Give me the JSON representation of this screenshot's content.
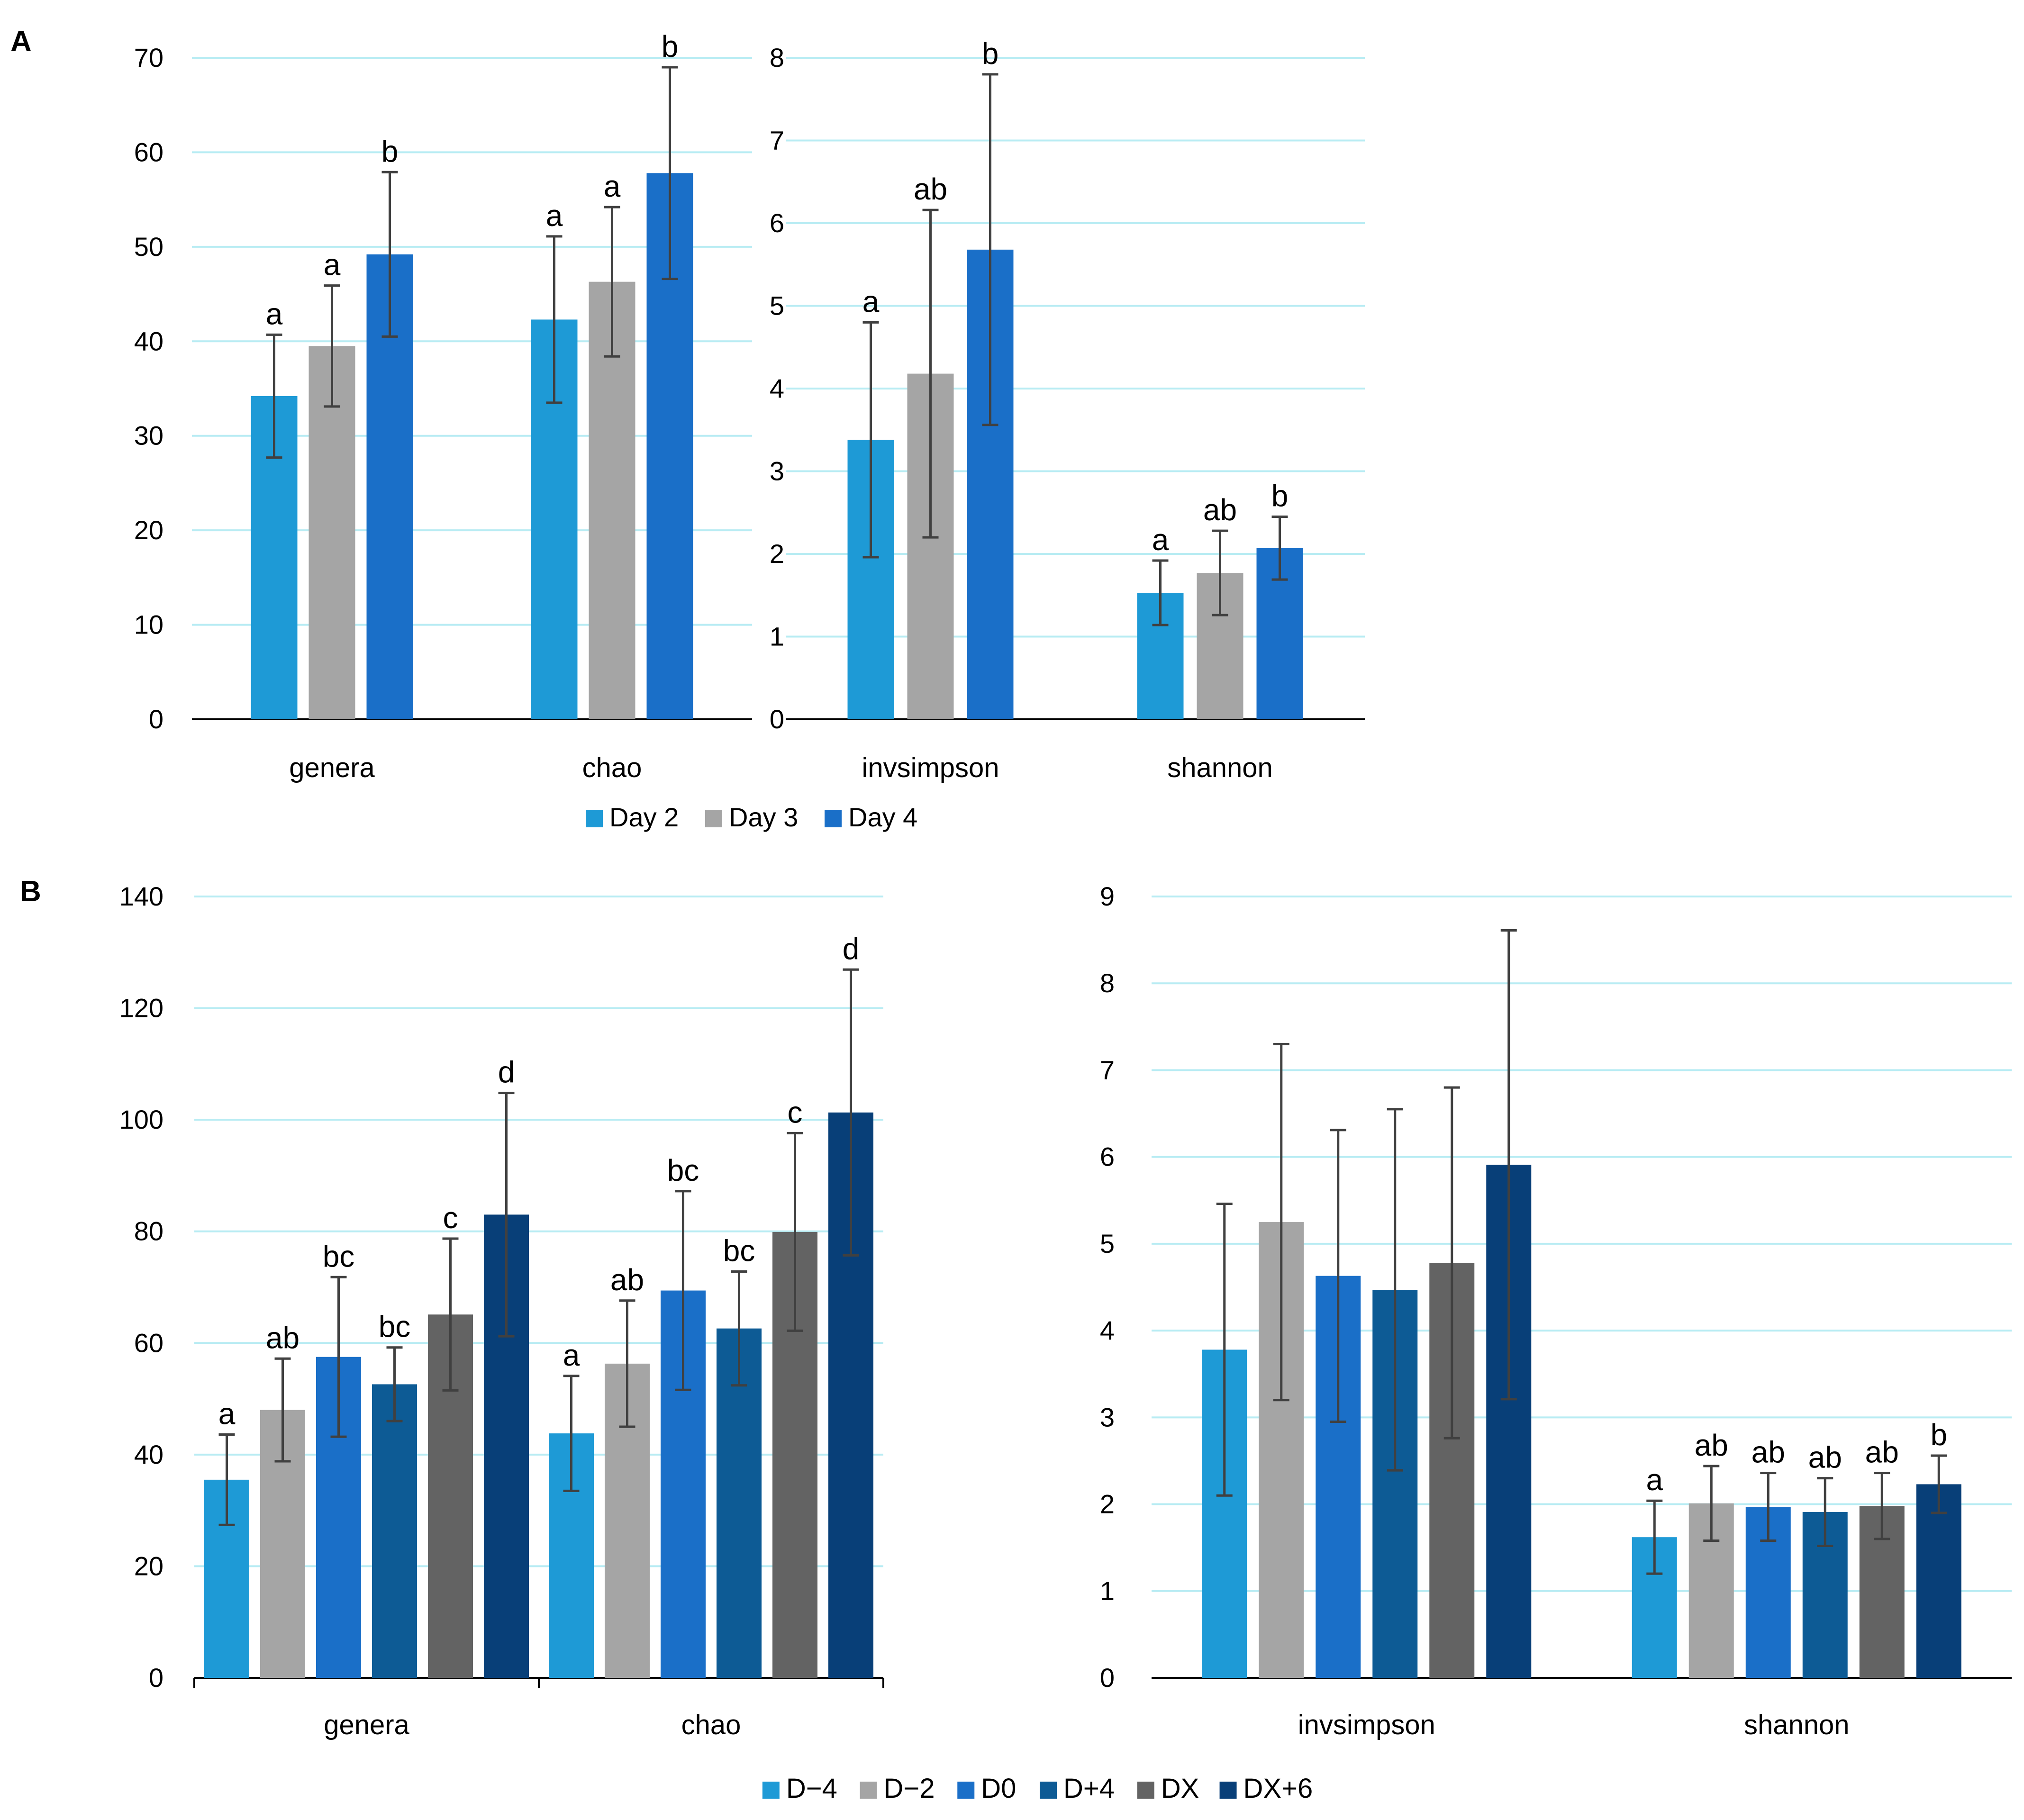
{
  "panels": {
    "a_label": "A",
    "b_label": "B"
  },
  "colors": {
    "gridline": "#b8ecf3",
    "axis": "#000000",
    "error_bar": "#404040",
    "D-4": "#1e9ad6",
    "D-2": "#a5a5a5",
    "D0": "#1a6fc8",
    "D+4": "#0d5b95",
    "DX": "#636363",
    "DX+6": "#083f78"
  },
  "chart_data": [
    {
      "id": "A1",
      "type": "bar",
      "categories": [
        "genera",
        "chao"
      ],
      "ylim": [
        0,
        70
      ],
      "yticks": [
        0,
        10,
        20,
        30,
        40,
        50,
        60,
        70
      ],
      "grid": true,
      "legend_ref": "legendA",
      "series": [
        {
          "name": "Day 2",
          "color": "#1e9ad6",
          "values": [
            34.2,
            42.3
          ],
          "error": [
            6.5,
            8.8
          ],
          "labels": [
            "a",
            "a"
          ]
        },
        {
          "name": "Day 3",
          "color": "#a5a5a5",
          "values": [
            39.5,
            46.3
          ],
          "error": [
            6.4,
            7.9
          ],
          "labels": [
            "a",
            "a"
          ]
        },
        {
          "name": "Day 4",
          "color": "#1a6fc8",
          "values": [
            49.2,
            57.8
          ],
          "error": [
            8.7,
            11.2
          ],
          "labels": [
            "b",
            "b"
          ]
        }
      ]
    },
    {
      "id": "A2",
      "type": "bar",
      "categories": [
        "invsimpson",
        "shannon"
      ],
      "ylim": [
        0,
        8
      ],
      "yticks": [
        0,
        1,
        2,
        3,
        4,
        5,
        6,
        7,
        8
      ],
      "grid": true,
      "legend_ref": "legendA",
      "series": [
        {
          "name": "Day 2",
          "color": "#1e9ad6",
          "values": [
            3.38,
            1.53
          ],
          "error": [
            1.42,
            0.39
          ],
          "labels": [
            "a",
            "a"
          ]
        },
        {
          "name": "Day 3",
          "color": "#a5a5a5",
          "values": [
            4.18,
            1.77
          ],
          "error": [
            1.98,
            0.51
          ],
          "labels": [
            "ab",
            "ab"
          ]
        },
        {
          "name": "Day 4",
          "color": "#1a6fc8",
          "values": [
            5.68,
            2.07
          ],
          "error": [
            2.12,
            0.38
          ],
          "labels": [
            "b",
            "b"
          ]
        }
      ]
    },
    {
      "id": "B1",
      "type": "bar",
      "categories": [
        "genera",
        "chao"
      ],
      "ylim": [
        0,
        140
      ],
      "yticks": [
        0,
        20,
        40,
        60,
        80,
        100,
        120,
        140
      ],
      "grid": true,
      "category_divider": true,
      "legend_ref": "legendB",
      "series": [
        {
          "name": "D−4",
          "color": "#1e9ad6",
          "values": [
            35.5,
            43.8
          ],
          "error": [
            8.1,
            10.3
          ],
          "labels": [
            "a",
            "a"
          ]
        },
        {
          "name": "D−2",
          "color": "#a5a5a5",
          "values": [
            48.0,
            56.3
          ],
          "error": [
            9.2,
            11.3
          ],
          "labels": [
            "ab",
            "ab"
          ]
        },
        {
          "name": "D0",
          "color": "#1a6fc8",
          "values": [
            57.5,
            69.4
          ],
          "error": [
            14.3,
            17.8
          ],
          "labels": [
            "bc",
            "bc"
          ]
        },
        {
          "name": "D+4",
          "color": "#0d5b95",
          "values": [
            52.6,
            62.6
          ],
          "error": [
            6.6,
            10.2
          ],
          "labels": [
            "bc",
            "bc"
          ]
        },
        {
          "name": "DX",
          "color": "#636363",
          "values": [
            65.1,
            79.9
          ],
          "error": [
            13.6,
            17.7
          ],
          "labels": [
            "c",
            "c"
          ]
        },
        {
          "name": "DX+6",
          "color": "#083f78",
          "values": [
            83.0,
            101.3
          ],
          "error": [
            21.8,
            25.6
          ],
          "labels": [
            "d",
            "d"
          ]
        }
      ]
    },
    {
      "id": "B2",
      "type": "bar",
      "categories": [
        "invsimpson",
        "shannon"
      ],
      "ylim": [
        0,
        9
      ],
      "yticks": [
        0,
        1,
        2,
        3,
        4,
        5,
        6,
        7,
        8,
        9
      ],
      "grid": true,
      "legend_ref": "legendB",
      "series": [
        {
          "name": "D−4",
          "color": "#1e9ad6",
          "values": [
            3.78,
            1.62
          ],
          "error": [
            1.68,
            0.42
          ],
          "labels": [
            "",
            "a"
          ]
        },
        {
          "name": "D−2",
          "color": "#a5a5a5",
          "values": [
            5.25,
            2.01
          ],
          "error": [
            2.05,
            0.43
          ],
          "labels": [
            "",
            "ab"
          ]
        },
        {
          "name": "D0",
          "color": "#1a6fc8",
          "values": [
            4.63,
            1.97
          ],
          "error": [
            1.68,
            0.39
          ],
          "labels": [
            "",
            "ab"
          ]
        },
        {
          "name": "D+4",
          "color": "#0d5b95",
          "values": [
            4.47,
            1.91
          ],
          "error": [
            2.08,
            0.39
          ],
          "labels": [
            "",
            "ab"
          ]
        },
        {
          "name": "DX",
          "color": "#636363",
          "values": [
            4.78,
            1.98
          ],
          "error": [
            2.02,
            0.38
          ],
          "labels": [
            "",
            "ab"
          ]
        },
        {
          "name": "DX+6",
          "color": "#083f78",
          "values": [
            5.91,
            2.23
          ],
          "error": [
            2.7,
            0.33
          ],
          "labels": [
            "",
            "b"
          ]
        }
      ]
    }
  ],
  "legendA": [
    {
      "name": "Day 2",
      "color": "#1e9ad6"
    },
    {
      "name": "Day 3",
      "color": "#a5a5a5"
    },
    {
      "name": "Day 4",
      "color": "#1a6fc8"
    }
  ],
  "legendB": [
    {
      "name": "D−4",
      "color": "#1e9ad6"
    },
    {
      "name": "D−2",
      "color": "#a5a5a5"
    },
    {
      "name": "D0",
      "color": "#1a6fc8"
    },
    {
      "name": "D+4",
      "color": "#0d5b95"
    },
    {
      "name": "DX",
      "color": "#636363"
    },
    {
      "name": "DX+6",
      "color": "#083f78"
    }
  ]
}
